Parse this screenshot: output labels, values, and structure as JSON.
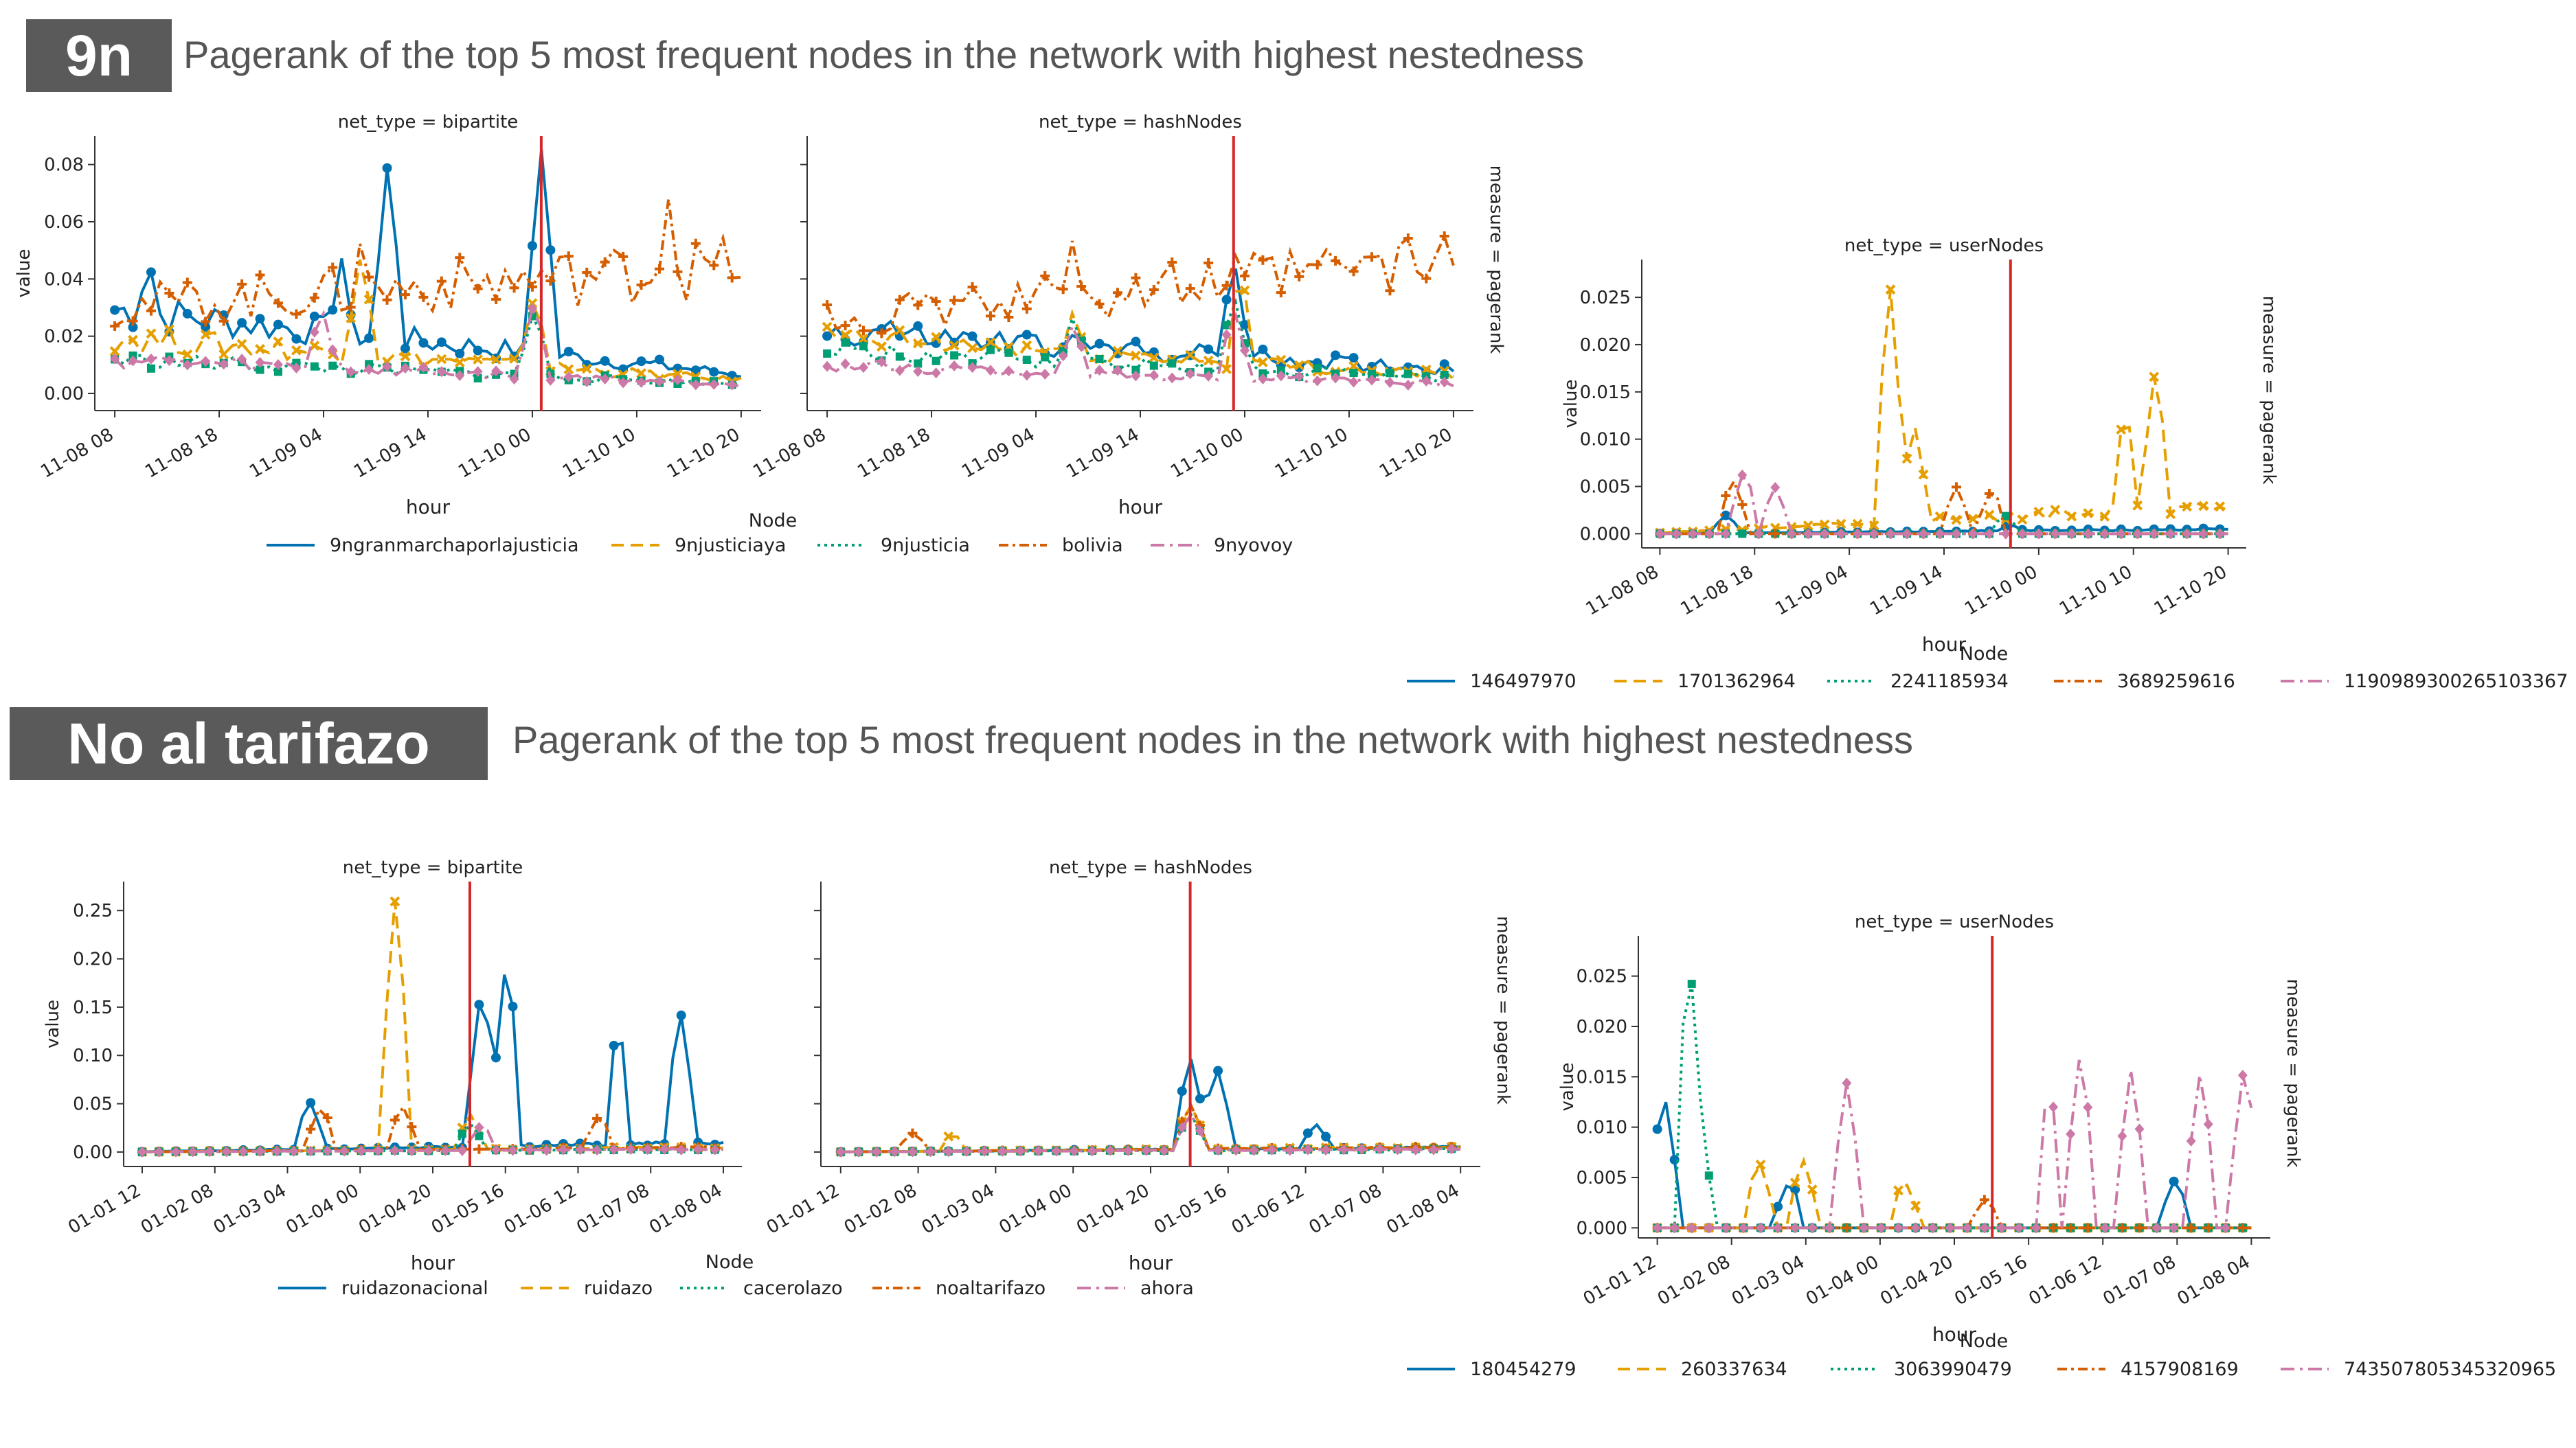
{
  "sections": [
    {
      "badge": "9n",
      "heading": "Pagerank of the top 5 most frequent nodes in the network with highest nestedness"
    },
    {
      "badge": "No al tarifazo",
      "heading": "Pagerank of the top 5 most frequent nodes in the network with highest nestedness"
    }
  ],
  "colors": [
    "#0072b2",
    "#e69f00",
    "#009e73",
    "#d55e00",
    "#cc79a7"
  ],
  "chart_data": [
    {
      "type": "line",
      "title": "net_type = bipartite",
      "xlabel": "hour",
      "ylabel": "value",
      "ylim": [
        -0.006,
        0.09
      ],
      "yticks": [
        "0.00",
        "0.02",
        "0.04",
        "0.06",
        "0.08"
      ],
      "yvals": [
        0,
        0.02,
        0.04,
        0.06,
        0.08
      ],
      "xticks": [
        "11-08 08",
        "11-08 18",
        "11-09 04",
        "11-09 14",
        "11-10 00",
        "11-10 10",
        "11-10 20"
      ],
      "vline": 0.67,
      "legend_title": "Node",
      "series": [
        {
          "name": "9ngranmarchaporlajusticia",
          "peaks": [
            [
              0.44,
              0.082
            ],
            [
              0.67,
              0.086
            ],
            [
              0.08,
              0.049
            ],
            [
              0.37,
              0.048
            ]
          ],
          "base": 0.03,
          "end": 0.006
        },
        {
          "name": "9njusticiaya",
          "peaks": [
            [
              0.66,
              0.035
            ],
            [
              0.4,
              0.05
            ]
          ],
          "base": 0.02,
          "end": 0.004
        },
        {
          "name": "9njusticia",
          "peaks": [
            [
              0.66,
              0.03
            ]
          ],
          "base": 0.012,
          "end": 0.003
        },
        {
          "name": "bolivia",
          "peaks": [
            [
              0.86,
              0.07
            ],
            [
              0.4,
              0.056
            ],
            [
              0.95,
              0.05
            ]
          ],
          "base": 0.03,
          "end": 0.045
        },
        {
          "name": "9nyovoy",
          "peaks": [
            [
              0.34,
              0.031
            ],
            [
              0.66,
              0.033
            ]
          ],
          "base": 0.012,
          "end": 0.003
        }
      ]
    },
    {
      "type": "line",
      "title": "net_type = hashNodes",
      "xlabel": "hour",
      "ylabel": "",
      "ylim": [
        -0.006,
        0.09
      ],
      "yticks": [],
      "yvals": [
        0,
        0.02,
        0.04,
        0.06,
        0.08
      ],
      "xticks": [
        "11-08 08",
        "11-08 18",
        "11-09 04",
        "11-09 14",
        "11-10 00",
        "11-10 10",
        "11-10 20"
      ],
      "vline": 0.64,
      "facet_label": "measure = pagerank",
      "series": [
        {
          "name": "9ngranmarchaporlajusticia",
          "peaks": [
            [
              0.64,
              0.048
            ],
            [
              0.12,
              0.03
            ]
          ],
          "base": 0.022,
          "end": 0.008
        },
        {
          "name": "9njusticiaya",
          "peaks": [
            [
              0.65,
              0.045
            ],
            [
              0.4,
              0.03
            ]
          ],
          "base": 0.02,
          "end": 0.006
        },
        {
          "name": "9njusticia",
          "peaks": [
            [
              0.64,
              0.035
            ],
            [
              0.4,
              0.028
            ]
          ],
          "base": 0.015,
          "end": 0.005
        },
        {
          "name": "bolivia",
          "peaks": [
            [
              0.4,
              0.057
            ],
            [
              0.8,
              0.055
            ],
            [
              0.64,
              0.048
            ]
          ],
          "base": 0.025,
          "end": 0.047
        },
        {
          "name": "9nyovoy",
          "peaks": [
            [
              0.64,
              0.03
            ],
            [
              0.4,
              0.025
            ]
          ],
          "base": 0.01,
          "end": 0.003
        }
      ]
    },
    {
      "type": "line",
      "title": "net_type = userNodes",
      "xlabel": "hour",
      "ylabel": "value",
      "ylim": [
        -0.0015,
        0.029
      ],
      "yticks": [
        "0.000",
        "0.005",
        "0.010",
        "0.015",
        "0.020",
        "0.025"
      ],
      "yvals": [
        0,
        0.005,
        0.01,
        0.015,
        0.02,
        0.025
      ],
      "xticks": [
        "11-08 08",
        "11-08 18",
        "11-09 04",
        "11-09 14",
        "11-10 00",
        "11-10 10",
        "11-10 20"
      ],
      "vline": 0.61,
      "facet_label": "measure = pagerank",
      "legend_title": "Node",
      "series": [
        {
          "name": "146497970",
          "peaks": [
            [
              0.14,
              0.002
            ],
            [
              0.61,
              0.001
            ]
          ],
          "base": 0,
          "end": 0.0005
        },
        {
          "name": "1701362964",
          "peaks": [
            [
              0.41,
              0.027
            ],
            [
              0.85,
              0.018
            ],
            [
              0.8,
              0.014
            ],
            [
              0.45,
              0.012
            ]
          ],
          "base": 0,
          "end": 0.003
        },
        {
          "name": "2241185934",
          "peaks": [
            [
              0.6,
              0.002
            ]
          ],
          "base": 0,
          "end": 0
        },
        {
          "name": "3689259616",
          "peaks": [
            [
              0.15,
              0.006
            ],
            [
              0.52,
              0.005
            ],
            [
              0.58,
              0.005
            ]
          ],
          "base": 0,
          "end": 0
        },
        {
          "name": "1190989300265103367",
          "peaks": [
            [
              0.17,
              0.007
            ],
            [
              0.22,
              0.005
            ]
          ],
          "base": 0,
          "end": 0
        }
      ]
    },
    {
      "type": "line",
      "title": "net_type = bipartite",
      "xlabel": "hour",
      "ylabel": "value",
      "ylim": [
        -0.015,
        0.28
      ],
      "yticks": [
        "0.00",
        "0.05",
        "0.10",
        "0.15",
        "0.20",
        "0.25"
      ],
      "yvals": [
        0,
        0.05,
        0.1,
        0.15,
        0.2,
        0.25
      ],
      "xticks": [
        "01-01 12",
        "01-02 08",
        "01-03 04",
        "01-04 00",
        "01-04 20",
        "01-05 16",
        "01-06 12",
        "01-07 08",
        "01-08 04"
      ],
      "vline": 0.56,
      "legend_title": "Node",
      "series": [
        {
          "name": "ruidazonacional",
          "peaks": [
            [
              0.58,
              0.18
            ],
            [
              0.62,
              0.21
            ],
            [
              0.8,
              0.14
            ],
            [
              0.9,
              0.15
            ],
            [
              0.3,
              0.055
            ]
          ],
          "base": 0.0,
          "end": 0.01
        },
        {
          "name": "ruidazo",
          "peaks": [
            [
              0.44,
              0.27
            ],
            [
              0.56,
              0.04
            ]
          ],
          "base": 0.0,
          "end": 0.005
        },
        {
          "name": "cacerolazo",
          "peaks": [
            [
              0.56,
              0.03
            ]
          ],
          "base": 0.0,
          "end": 0.003
        },
        {
          "name": "noaltarifazo",
          "peaks": [
            [
              0.32,
              0.05
            ],
            [
              0.45,
              0.05
            ],
            [
              0.77,
              0.04
            ]
          ],
          "base": 0.0,
          "end": 0.005
        },
        {
          "name": "ahora",
          "peaks": [
            [
              0.58,
              0.03
            ]
          ],
          "base": 0.0,
          "end": 0.003
        }
      ]
    },
    {
      "type": "line",
      "title": "net_type = hashNodes",
      "xlabel": "hour",
      "ylabel": "",
      "ylim": [
        -0.015,
        0.28
      ],
      "yticks": [],
      "yvals": [
        0,
        0.05,
        0.1,
        0.15,
        0.2,
        0.25
      ],
      "xticks": [
        "01-01 12",
        "01-02 08",
        "01-03 04",
        "01-04 00",
        "01-04 20",
        "01-05 16",
        "01-06 12",
        "01-07 08",
        "01-08 04"
      ],
      "vline": 0.56,
      "facet_label": "measure = pagerank",
      "series": [
        {
          "name": "ruidazonacional",
          "peaks": [
            [
              0.56,
              0.1
            ],
            [
              0.6,
              0.09
            ],
            [
              0.75,
              0.03
            ]
          ],
          "base": 0.0,
          "end": 0.005
        },
        {
          "name": "ruidazo",
          "peaks": [
            [
              0.56,
              0.05
            ],
            [
              0.2,
              0.02
            ]
          ],
          "base": 0.0,
          "end": 0.005
        },
        {
          "name": "cacerolazo",
          "peaks": [
            [
              0.56,
              0.04
            ]
          ],
          "base": 0.0,
          "end": 0.003
        },
        {
          "name": "noaltarifazo",
          "peaks": [
            [
              0.56,
              0.05
            ],
            [
              0.14,
              0.02
            ]
          ],
          "base": 0.0,
          "end": 0.005
        },
        {
          "name": "ahora",
          "peaks": [
            [
              0.56,
              0.04
            ]
          ],
          "base": 0.0,
          "end": 0.003
        }
      ]
    },
    {
      "type": "line",
      "title": "net_type = userNodes",
      "xlabel": "hour",
      "ylabel": "value",
      "ylim": [
        -0.001,
        0.029
      ],
      "yticks": [
        "0.000",
        "0.005",
        "0.010",
        "0.015",
        "0.020",
        "0.025"
      ],
      "yvals": [
        0,
        0.005,
        0.01,
        0.015,
        0.02,
        0.025
      ],
      "xticks": [
        "01-01 12",
        "01-02 08",
        "01-03 04",
        "01-04 00",
        "01-04 20",
        "01-05 16",
        "01-06 12",
        "01-07 08",
        "01-08 04"
      ],
      "vline": 0.56,
      "facet_label": "measure = pagerank",
      "legend_title": "Node",
      "series": [
        {
          "name": "180454279",
          "peaks": [
            [
              0.04,
              0.014
            ],
            [
              0.24,
              0.005
            ],
            [
              0.85,
              0.005
            ]
          ],
          "base": 0,
          "end": 0
        },
        {
          "name": "260337634",
          "peaks": [
            [
              0.19,
              0.007
            ],
            [
              0.26,
              0.007
            ],
            [
              0.42,
              0.005
            ]
          ],
          "base": 0,
          "end": 0
        },
        {
          "name": "3063990479",
          "peaks": [
            [
              0.08,
              0.028
            ],
            [
              0.1,
              0.008
            ]
          ],
          "base": 0,
          "end": 0
        },
        {
          "name": "4157908169",
          "peaks": [
            [
              0.55,
              0.003
            ]
          ],
          "base": 0,
          "end": 0
        },
        {
          "name": "743507805345320965",
          "peaks": [
            [
              0.33,
              0.0145
            ],
            [
              0.7,
              0.018
            ],
            [
              0.78,
              0.016
            ],
            [
              0.89,
              0.016
            ],
            [
              0.96,
              0.017
            ],
            [
              0.65,
              0.015
            ]
          ],
          "base": 0,
          "end": 0
        }
      ]
    }
  ]
}
